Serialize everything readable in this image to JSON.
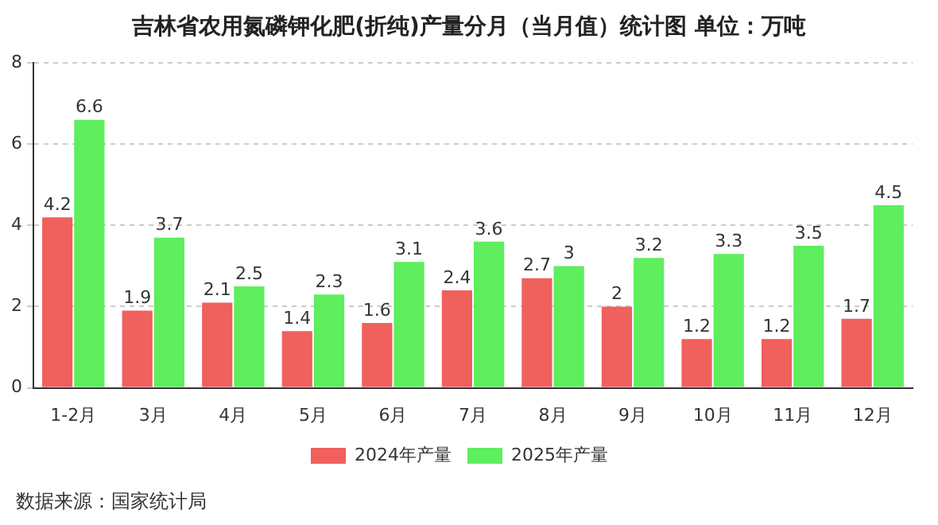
{
  "chart_data": {
    "type": "bar",
    "title": "吉林省农用氮磷钾化肥(折纯)产量分月（当月值）统计图 单位：万吨",
    "categories": [
      "1-2月",
      "3月",
      "4月",
      "5月",
      "6月",
      "7月",
      "8月",
      "9月",
      "10月",
      "11月",
      "12月"
    ],
    "series": [
      {
        "name": "2024年产量",
        "color": "#f0605d",
        "values": [
          4.2,
          1.9,
          2.1,
          1.4,
          1.6,
          2.4,
          2.7,
          2,
          1.2,
          1.2,
          1.7
        ]
      },
      {
        "name": "2025年产量",
        "color": "#5eee5e",
        "values": [
          6.6,
          3.7,
          2.5,
          2.3,
          3.1,
          3.6,
          3,
          3.2,
          3.3,
          3.5,
          4.5
        ]
      }
    ],
    "ylim": [
      0,
      8
    ],
    "yticks": [
      0,
      2,
      4,
      6,
      8
    ],
    "grid": "y",
    "legend": "bottom",
    "data_labels": true,
    "annotations": [
      "数据来源：国家统计局"
    ]
  }
}
